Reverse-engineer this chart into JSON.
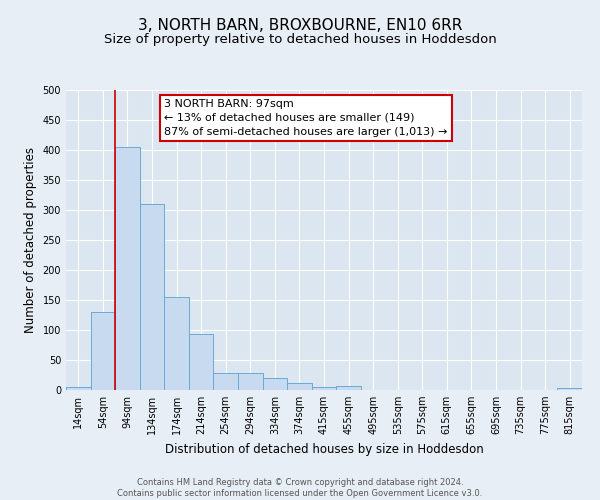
{
  "title": "3, NORTH BARN, BROXBOURNE, EN10 6RR",
  "subtitle": "Size of property relative to detached houses in Hoddesdon",
  "xlabel": "Distribution of detached houses by size in Hoddesdon",
  "ylabel": "Number of detached properties",
  "bin_labels": [
    "14sqm",
    "54sqm",
    "94sqm",
    "134sqm",
    "174sqm",
    "214sqm",
    "254sqm",
    "294sqm",
    "334sqm",
    "374sqm",
    "415sqm",
    "455sqm",
    "495sqm",
    "535sqm",
    "575sqm",
    "615sqm",
    "655sqm",
    "695sqm",
    "735sqm",
    "775sqm",
    "815sqm"
  ],
  "bar_values": [
    5,
    130,
    405,
    310,
    155,
    93,
    28,
    28,
    20,
    11,
    5,
    6,
    0,
    0,
    0,
    0,
    0,
    0,
    0,
    0,
    3
  ],
  "bar_color": "#c8daf0",
  "bar_edge_color": "#6aaad4",
  "vline_color": "#cc0000",
  "vline_bin_index": 2,
  "ylim": [
    0,
    500
  ],
  "yticks": [
    0,
    50,
    100,
    150,
    200,
    250,
    300,
    350,
    400,
    450,
    500
  ],
  "annotation_title": "3 NORTH BARN: 97sqm",
  "annotation_line1": "← 13% of detached houses are smaller (149)",
  "annotation_line2": "87% of semi-detached houses are larger (1,013) →",
  "annotation_box_color": "#ffffff",
  "annotation_edge_color": "#cc0000",
  "footer_line1": "Contains HM Land Registry data © Crown copyright and database right 2024.",
  "footer_line2": "Contains public sector information licensed under the Open Government Licence v3.0.",
  "bg_color": "#e8eef5",
  "plot_bg_color": "#dce6f0",
  "title_fontsize": 11,
  "subtitle_fontsize": 9.5,
  "ylabel_fontsize": 8.5,
  "xlabel_fontsize": 8.5,
  "tick_fontsize": 7,
  "annot_fontsize": 8,
  "footer_fontsize": 6
}
